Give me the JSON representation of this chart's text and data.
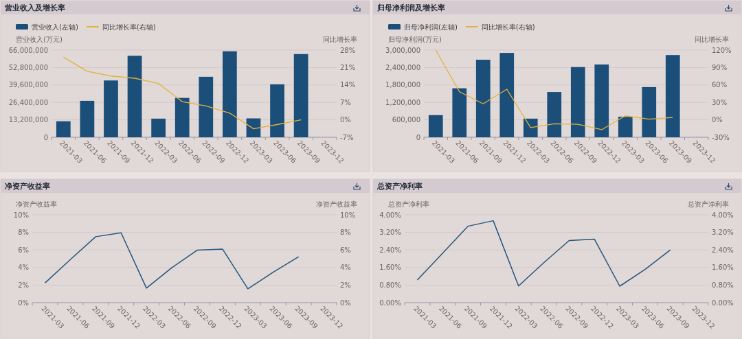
{
  "chart_data": [
    {
      "type": "bar",
      "title": "营业收入及增长率",
      "ylabel": "营业收入(万元)",
      "y2label": "同比增长率",
      "legend": "top left",
      "grid": "y",
      "categories": [
        "2021-03",
        "2021-06",
        "2021-09",
        "2021-12",
        "2022-03",
        "2022-06",
        "2022-09",
        "2022-12",
        "2023-03",
        "2023-06",
        "2023-09",
        "2023-12"
      ],
      "series": [
        {
          "name": "营业收入(左轴)",
          "type": "bar",
          "color": "#1b4f7a",
          "values": [
            12100000,
            27600000,
            43000000,
            61700000,
            14100000,
            29800000,
            45800000,
            65100000,
            14300000,
            40100000,
            63000000,
            null
          ]
        },
        {
          "name": "同比增长率(右轴)",
          "type": "line",
          "axis": "y2",
          "color": "#e3b23c",
          "values": [
            25.2,
            19.5,
            17.6,
            16.7,
            14.6,
            7.3,
            5.6,
            2.7,
            -3.6,
            -1.9,
            0.0,
            null
          ]
        }
      ],
      "ylim": [
        0,
        66000000
      ],
      "yticks": [
        {
          "value": 0,
          "label": "0"
        },
        {
          "value": 13200000,
          "label": "13,200,000"
        },
        {
          "value": 26400000,
          "label": "26,400,000"
        },
        {
          "value": 39600000,
          "label": "39,600,000"
        },
        {
          "value": 52800000,
          "label": "52,800,000"
        },
        {
          "value": 66000000,
          "label": "66,000,000"
        }
      ],
      "y2lim": [
        -7,
        28
      ],
      "y2ticks": [
        {
          "value": -7,
          "label": "-7%"
        },
        {
          "value": 0,
          "label": "0%"
        },
        {
          "value": 7,
          "label": "7%"
        },
        {
          "value": 14,
          "label": "14%"
        },
        {
          "value": 21,
          "label": "21%"
        },
        {
          "value": 28,
          "label": "28%"
        }
      ]
    },
    {
      "type": "bar",
      "title": "归母净利润及增长率",
      "ylabel": "归母净利润(万元)",
      "y2label": "同比增长率",
      "legend": "top left",
      "grid": "y",
      "categories": [
        "2021-03",
        "2021-06",
        "2021-09",
        "2021-12",
        "2022-03",
        "2022-06",
        "2022-09",
        "2022-12",
        "2023-03",
        "2023-06",
        "2023-09",
        "2023-12"
      ],
      "series": [
        {
          "name": "归母净利润(左轴)",
          "type": "bar",
          "color": "#1b4f7a",
          "values": [
            762000,
            1686000,
            2668000,
            2903000,
            641000,
            1557000,
            2416000,
            2505000,
            705000,
            1727000,
            2830000,
            null
          ]
        },
        {
          "name": "同比增长率(右轴)",
          "type": "line",
          "axis": "y2",
          "color": "#e3b23c",
          "values": [
            120,
            48.2,
            27.6,
            52.7,
            -13.4,
            -6.9,
            -7.7,
            -17.0,
            6.9,
            1.2,
            4.1,
            null
          ]
        }
      ],
      "ylim": [
        0,
        3000000
      ],
      "yticks": [
        {
          "value": 0,
          "label": "0"
        },
        {
          "value": 600000,
          "label": "600,000"
        },
        {
          "value": 1200000,
          "label": "1,200,000"
        },
        {
          "value": 1800000,
          "label": "1,800,000"
        },
        {
          "value": 2400000,
          "label": "2,400,000"
        },
        {
          "value": 3000000,
          "label": "3,000,000"
        }
      ],
      "y2lim": [
        -30,
        120
      ],
      "y2ticks": [
        {
          "value": -30,
          "label": "-30%"
        },
        {
          "value": 0,
          "label": "0%"
        },
        {
          "value": 30,
          "label": "30%"
        },
        {
          "value": 60,
          "label": "60%"
        },
        {
          "value": 90,
          "label": "90%"
        },
        {
          "value": 120,
          "label": "120%"
        }
      ]
    },
    {
      "type": "line",
      "title": "净资产收益率",
      "ylabel": "净资产收益率",
      "y2label": "净资产收益率",
      "grid": "y",
      "categories": [
        "2021-03",
        "2021-06",
        "2021-09",
        "2021-12",
        "2022-03",
        "2022-06",
        "2022-09",
        "2022-12",
        "2023-03",
        "2023-06",
        "2023-09",
        "2023-12"
      ],
      "series": [
        {
          "type": "line",
          "color": "#24557f",
          "values": [
            2.24,
            4.9,
            7.51,
            7.95,
            1.65,
            3.97,
            5.97,
            6.1,
            1.57,
            3.46,
            5.22,
            null
          ]
        }
      ],
      "ylim": [
        0,
        10
      ],
      "yticks": [
        {
          "value": 0,
          "label": "0%"
        },
        {
          "value": 2,
          "label": "2%"
        },
        {
          "value": 4,
          "label": "4%"
        },
        {
          "value": 6,
          "label": "6%"
        },
        {
          "value": 8,
          "label": "8%"
        },
        {
          "value": 10,
          "label": "10%"
        }
      ],
      "y2lim": [
        0,
        10
      ],
      "y2ticks": [
        {
          "value": 0,
          "label": "0%"
        },
        {
          "value": 2,
          "label": "2%"
        },
        {
          "value": 4,
          "label": "4%"
        },
        {
          "value": 6,
          "label": "6%"
        },
        {
          "value": 8,
          "label": "8%"
        },
        {
          "value": 10,
          "label": "10%"
        }
      ]
    },
    {
      "type": "line",
      "title": "总资产净利率",
      "ylabel": "总资产净利率",
      "y2label": "总资产净利率",
      "grid": "y",
      "categories": [
        "2021-03",
        "2021-06",
        "2021-09",
        "2021-12",
        "2022-03",
        "2022-06",
        "2022-09",
        "2022-12",
        "2023-03",
        "2023-06",
        "2023-09",
        "2023-12"
      ],
      "series": [
        {
          "type": "line",
          "color": "#24557f",
          "values": [
            1.03,
            2.25,
            3.48,
            3.73,
            0.76,
            1.82,
            2.83,
            2.89,
            0.75,
            1.51,
            2.4,
            null
          ]
        }
      ],
      "ylim": [
        0,
        4
      ],
      "yticks": [
        {
          "value": 0,
          "label": "0.00%"
        },
        {
          "value": 0.8,
          "label": "0.80%"
        },
        {
          "value": 1.6,
          "label": "1.60%"
        },
        {
          "value": 2.4,
          "label": "2.40%"
        },
        {
          "value": 3.2,
          "label": "3.20%"
        },
        {
          "value": 4,
          "label": "4.00%"
        }
      ],
      "y2lim": [
        0,
        4
      ],
      "y2ticks": [
        {
          "value": 0,
          "label": "0.00%"
        },
        {
          "value": 0.8,
          "label": "0.80%"
        },
        {
          "value": 1.6,
          "label": "1.60%"
        },
        {
          "value": 2.4,
          "label": "2.40%"
        },
        {
          "value": 3.2,
          "label": "3.20%"
        },
        {
          "value": 4,
          "label": "4.00%"
        }
      ]
    }
  ]
}
